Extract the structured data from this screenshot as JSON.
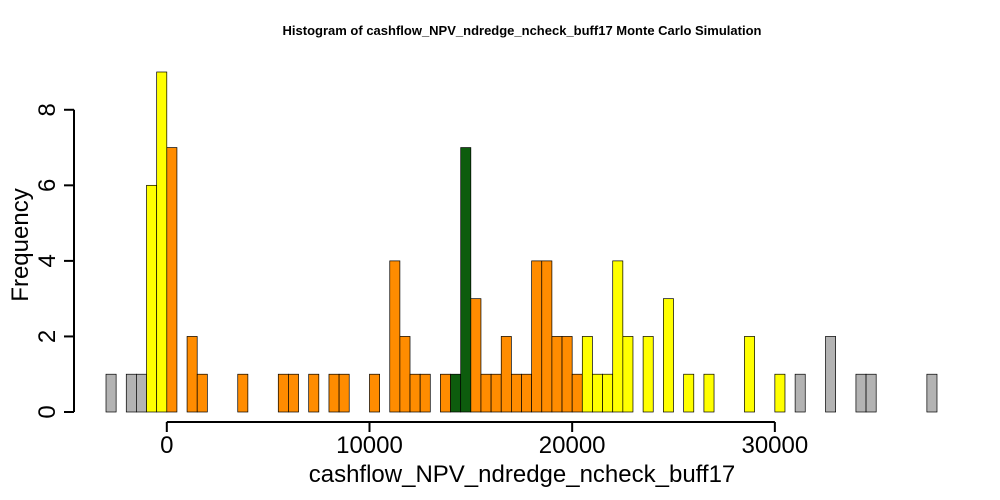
{
  "chart_data": {
    "type": "bar",
    "title": "Histogram of  cashflow_NPV_ndredge_ncheck_buff17  Monte Carlo Simulation",
    "xlabel": "cashflow_NPV_ndredge_ncheck_buff17",
    "ylabel": "Frequency",
    "xlim": [
      -3000,
      38000
    ],
    "ylim": [
      0,
      9
    ],
    "x_ticks": [
      0,
      10000,
      20000,
      30000
    ],
    "y_ticks": [
      0,
      2,
      4,
      6,
      8
    ],
    "bin_width": 500,
    "bins_start": [
      -3000,
      -2500,
      -2000,
      -1500,
      -1000,
      -500,
      0,
      500,
      1000,
      1500,
      2000,
      2500,
      3000,
      3500,
      4000,
      4500,
      5000,
      5500,
      6000,
      6500,
      7000,
      7500,
      8000,
      8500,
      9000,
      9500,
      10000,
      10500,
      11000,
      11500,
      12000,
      12500,
      13000,
      13500,
      14000,
      14500,
      15000,
      15500,
      16000,
      16500,
      17000,
      17500,
      18000,
      18500,
      19000,
      19500,
      20000,
      20500,
      21000,
      21500,
      22000,
      22500,
      23000,
      23500,
      24000,
      24500,
      25000,
      25500,
      26000,
      26500,
      27000,
      27500,
      28000,
      28500,
      29000,
      29500,
      30000,
      30500,
      31000,
      31500,
      32000,
      32500,
      33000,
      33500,
      34000,
      34500,
      35000,
      35500,
      36000,
      36500,
      37000,
      37500
    ],
    "frequencies": [
      1,
      0,
      1,
      1,
      6,
      9,
      7,
      0,
      2,
      1,
      0,
      0,
      0,
      1,
      0,
      0,
      0,
      1,
      1,
      0,
      1,
      0,
      1,
      1,
      0,
      0,
      1,
      0,
      4,
      2,
      1,
      1,
      0,
      1,
      1,
      7,
      3,
      1,
      1,
      2,
      1,
      1,
      4,
      4,
      2,
      2,
      1,
      2,
      1,
      1,
      4,
      2,
      0,
      2,
      0,
      3,
      0,
      1,
      0,
      1,
      0,
      0,
      0,
      2,
      0,
      0,
      1,
      0,
      1,
      0,
      0,
      2,
      0,
      0,
      1,
      1,
      0,
      0,
      0,
      0,
      0,
      1
    ],
    "bin_colors": [
      "#b3b3b3",
      "#b3b3b3",
      "#b3b3b3",
      "#b3b3b3",
      "#ffff00",
      "#ffff00",
      "#ff8c00",
      "#ff8c00",
      "#ff8c00",
      "#ff8c00",
      "#ff8c00",
      "#ff8c00",
      "#ff8c00",
      "#ff8c00",
      "#ff8c00",
      "#ff8c00",
      "#ff8c00",
      "#ff8c00",
      "#ff8c00",
      "#ff8c00",
      "#ff8c00",
      "#ff8c00",
      "#ff8c00",
      "#ff8c00",
      "#ff8c00",
      "#ff8c00",
      "#ff8c00",
      "#ff8c00",
      "#ff8c00",
      "#ff8c00",
      "#ff8c00",
      "#ff8c00",
      "#ff8c00",
      "#ff8c00",
      "#0d5c0d",
      "#0d5c0d",
      "#ff8c00",
      "#ff8c00",
      "#ff8c00",
      "#ff8c00",
      "#ff8c00",
      "#ff8c00",
      "#ff8c00",
      "#ff8c00",
      "#ff8c00",
      "#ff8c00",
      "#ff8c00",
      "#ffff00",
      "#ffff00",
      "#ffff00",
      "#ffff00",
      "#ffff00",
      "#ffff00",
      "#ffff00",
      "#ffff00",
      "#ffff00",
      "#ffff00",
      "#ffff00",
      "#ffff00",
      "#ffff00",
      "#ffff00",
      "#ffff00",
      "#ffff00",
      "#ffff00",
      "#ffff00",
      "#ffff00",
      "#ffff00",
      "#ffff00",
      "#b3b3b3",
      "#b3b3b3",
      "#b3b3b3",
      "#b3b3b3",
      "#b3b3b3",
      "#b3b3b3",
      "#b3b3b3",
      "#b3b3b3",
      "#b3b3b3",
      "#b3b3b3",
      "#b3b3b3",
      "#b3b3b3",
      "#b3b3b3",
      "#b3b3b3"
    ],
    "grid": false,
    "legend": "none"
  }
}
